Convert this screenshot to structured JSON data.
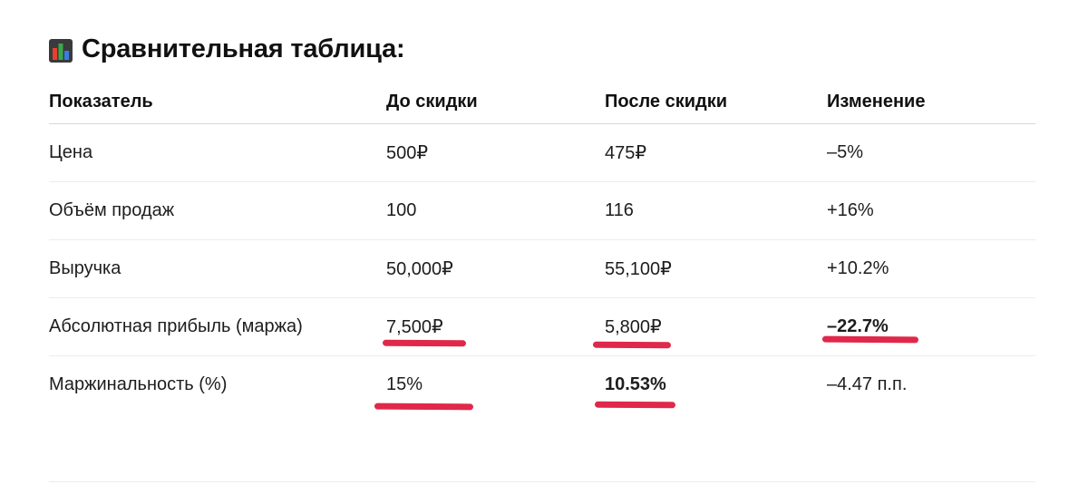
{
  "title": {
    "icon": "bar-chart-icon",
    "text": "Сравнительная таблица:"
  },
  "table": {
    "headers": [
      "Показатель",
      "До скидки",
      "После скидки",
      "Изменение"
    ],
    "rows": [
      [
        "Цена",
        "500₽",
        "475₽",
        "–5%"
      ],
      [
        "Объём продаж",
        "100",
        "116",
        "+16%"
      ],
      [
        "Выручка",
        "50,000₽",
        "55,100₽",
        "+10.2%"
      ],
      [
        "Абсолютная прибыль (маржа)",
        "7,500₽",
        "5,800₽",
        "–22.7%"
      ],
      [
        "Маржинальность (%)",
        "15%",
        "10.53%",
        "–4.47 п.п."
      ]
    ]
  },
  "highlights": {
    "underline_color": "#e0284a",
    "bold_cells": [
      "r3c3",
      "r4c2"
    ],
    "underlined_cells": [
      "r3c1",
      "r3c2",
      "r3c3",
      "r4c1",
      "r4c2"
    ]
  }
}
